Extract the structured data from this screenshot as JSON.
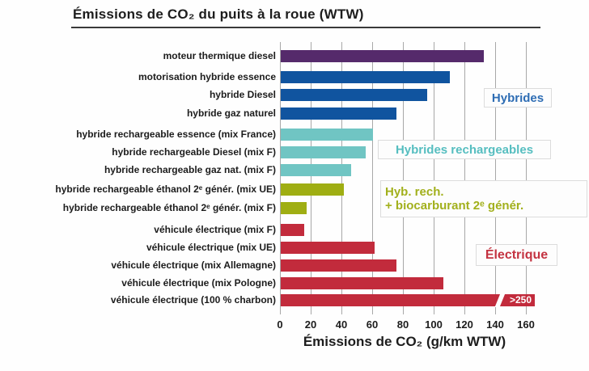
{
  "title": "Émissions de CO₂ du puits à la roue (WTW)",
  "chart_data": {
    "type": "bar",
    "orientation": "horizontal",
    "title": "Émissions de CO₂ du puits à la roue (WTW)",
    "xlabel": "Émissions de CO₂ (g/km WTW)",
    "xlim": [
      0,
      160
    ],
    "xticks": [
      0,
      20,
      40,
      60,
      80,
      100,
      120,
      140,
      160
    ],
    "grid": true,
    "legend_position": "inline-right",
    "groups": [
      {
        "id": "thermique",
        "color": "#552a6b",
        "label": null,
        "label_color": null
      },
      {
        "id": "hybrides",
        "color": "#10549f",
        "label": "Hybrides",
        "label_lines": [
          "Hybrides"
        ],
        "label_color": "#2e6db4"
      },
      {
        "id": "hybrides_rechargeables",
        "color": "#70c5c3",
        "label": "Hybrides rechargeables",
        "label_lines": [
          "Hybrides rechargeables"
        ],
        "label_color": "#56bec0"
      },
      {
        "id": "hyb_rech_biocarburant",
        "color": "#9fae13",
        "label": "Hyb. rech. + biocarburant 2ᵉ génér.",
        "label_lines": [
          "Hyb. rech.",
          "+ biocarburant 2ᵉ génér."
        ],
        "label_color": "#a2b01c"
      },
      {
        "id": "electrique",
        "color": "#c22b3c",
        "label": "Électrique",
        "label_lines": [
          "Électrique"
        ],
        "label_color": "#c43341"
      }
    ],
    "bars": [
      {
        "label": "moteur thermique diesel",
        "value": 132,
        "group": "thermique"
      },
      {
        "label": "motorisation hybride essence",
        "value": 110,
        "group": "hybrides"
      },
      {
        "label": "hybride Diesel",
        "value": 95,
        "group": "hybrides"
      },
      {
        "label": "hybride gaz naturel",
        "value": 75,
        "group": "hybrides"
      },
      {
        "label": "hybride rechargeable essence (mix France)",
        "value": 60,
        "group": "hybrides_rechargeables"
      },
      {
        "label": "hybride rechargeable Diesel (mix F)",
        "value": 55,
        "group": "hybrides_rechargeables"
      },
      {
        "label": "hybride rechargeable gaz nat. (mix F)",
        "value": 46,
        "group": "hybrides_rechargeables"
      },
      {
        "label": "hybride rechargeable éthanol 2ᵉ génér. (mix UE)",
        "value": 41,
        "group": "hyb_rech_biocarburant"
      },
      {
        "label": "hybride rechargeable éthanol 2ᵉ génér. (mix F)",
        "value": 17,
        "group": "hyb_rech_biocarburant"
      },
      {
        "label": "véhicule électrique (mix F)",
        "value": 15,
        "group": "electrique"
      },
      {
        "label": "véhicule électrique (mix UE)",
        "value": 61,
        "group": "electrique"
      },
      {
        "label": "véhicule électrique (mix Allemagne)",
        "value": 75,
        "group": "electrique"
      },
      {
        "label": "véhicule électrique (mix Pologne)",
        "value": 106,
        "group": "electrique"
      },
      {
        "label": "véhicule électrique (100 % charbon)",
        "value": 250,
        "display_value": ">250",
        "drawn_length": 165,
        "overflow": true,
        "group": "electrique"
      }
    ]
  }
}
